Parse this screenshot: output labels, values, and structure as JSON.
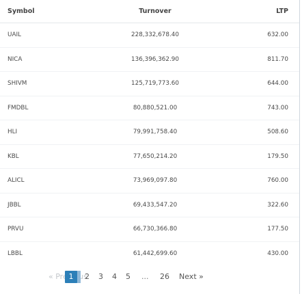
{
  "headers": {
    "symbol": "Symbol",
    "turnover": "Turnover",
    "ltp": "LTP"
  },
  "rows": [
    {
      "symbol": "UAIL",
      "turnover": "228,332,678.40",
      "ltp": "632.00"
    },
    {
      "symbol": "NICA",
      "turnover": "136,396,362.90",
      "ltp": "811.70"
    },
    {
      "symbol": "SHIVM",
      "turnover": "125,719,773.60",
      "ltp": "644.00"
    },
    {
      "symbol": "FMDBL",
      "turnover": "80,880,521.00",
      "ltp": "743.00"
    },
    {
      "symbol": "HLI",
      "turnover": "79,991,758.40",
      "ltp": "508.60"
    },
    {
      "symbol": "KBL",
      "turnover": "77,650,214.20",
      "ltp": "179.50"
    },
    {
      "symbol": "ALICL",
      "turnover": "73,969,097.80",
      "ltp": "760.00"
    },
    {
      "symbol": "JBBL",
      "turnover": "69,433,547.20",
      "ltp": "322.60"
    },
    {
      "symbol": "PRVU",
      "turnover": "66,730,366.80",
      "ltp": "177.50"
    },
    {
      "symbol": "LBBL",
      "turnover": "61,442,699.60",
      "ltp": "430.00"
    }
  ],
  "pagination": {
    "previous": "« Previous",
    "pages": [
      "1",
      "2",
      "3",
      "4",
      "5"
    ],
    "ellipsis": "...",
    "last": "26",
    "next": "Next »",
    "active_color": "#2c7fb8"
  }
}
